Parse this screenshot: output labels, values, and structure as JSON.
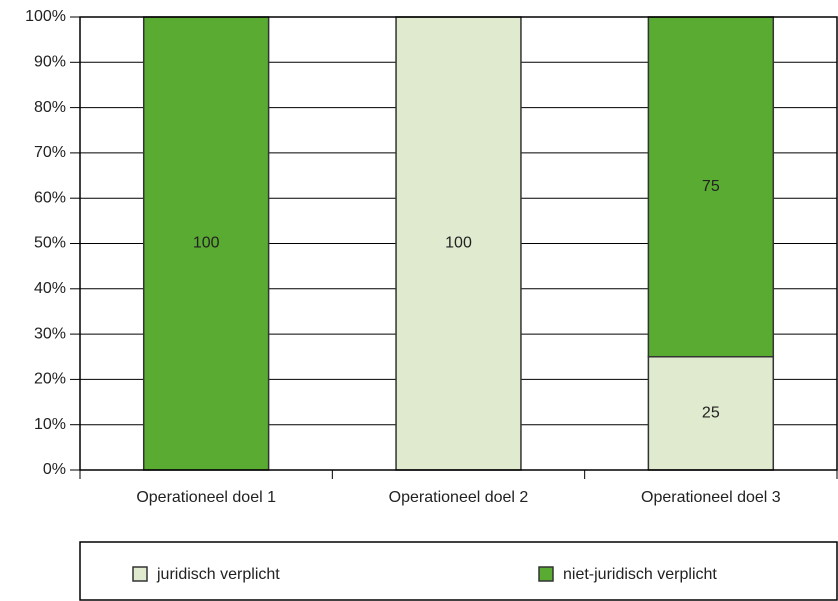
{
  "chart_data": {
    "type": "stacked_bar",
    "categories": [
      "Operationeel doel 1",
      "Operationeel doel 2",
      "Operationeel doel 3"
    ],
    "series": [
      {
        "name": "juridisch verplicht",
        "color": "#dfeacf",
        "values": [
          0,
          100,
          25
        ]
      },
      {
        "name": "niet-juridisch verplicht",
        "color": "#5aab31",
        "values": [
          100,
          0,
          75
        ]
      }
    ],
    "ylim": [
      0,
      100
    ],
    "yticks": [
      {
        "value": 0,
        "label": "0%"
      },
      {
        "value": 10,
        "label": "10%"
      },
      {
        "value": 20,
        "label": "20%"
      },
      {
        "value": 30,
        "label": "30%"
      },
      {
        "value": 40,
        "label": "40%"
      },
      {
        "value": 50,
        "label": "50%"
      },
      {
        "value": 60,
        "label": "60%"
      },
      {
        "value": 70,
        "label": "70%"
      },
      {
        "value": 80,
        "label": "80%"
      },
      {
        "value": 90,
        "label": "90%"
      },
      {
        "value": 100,
        "label": "100%"
      }
    ],
    "grid": true
  }
}
